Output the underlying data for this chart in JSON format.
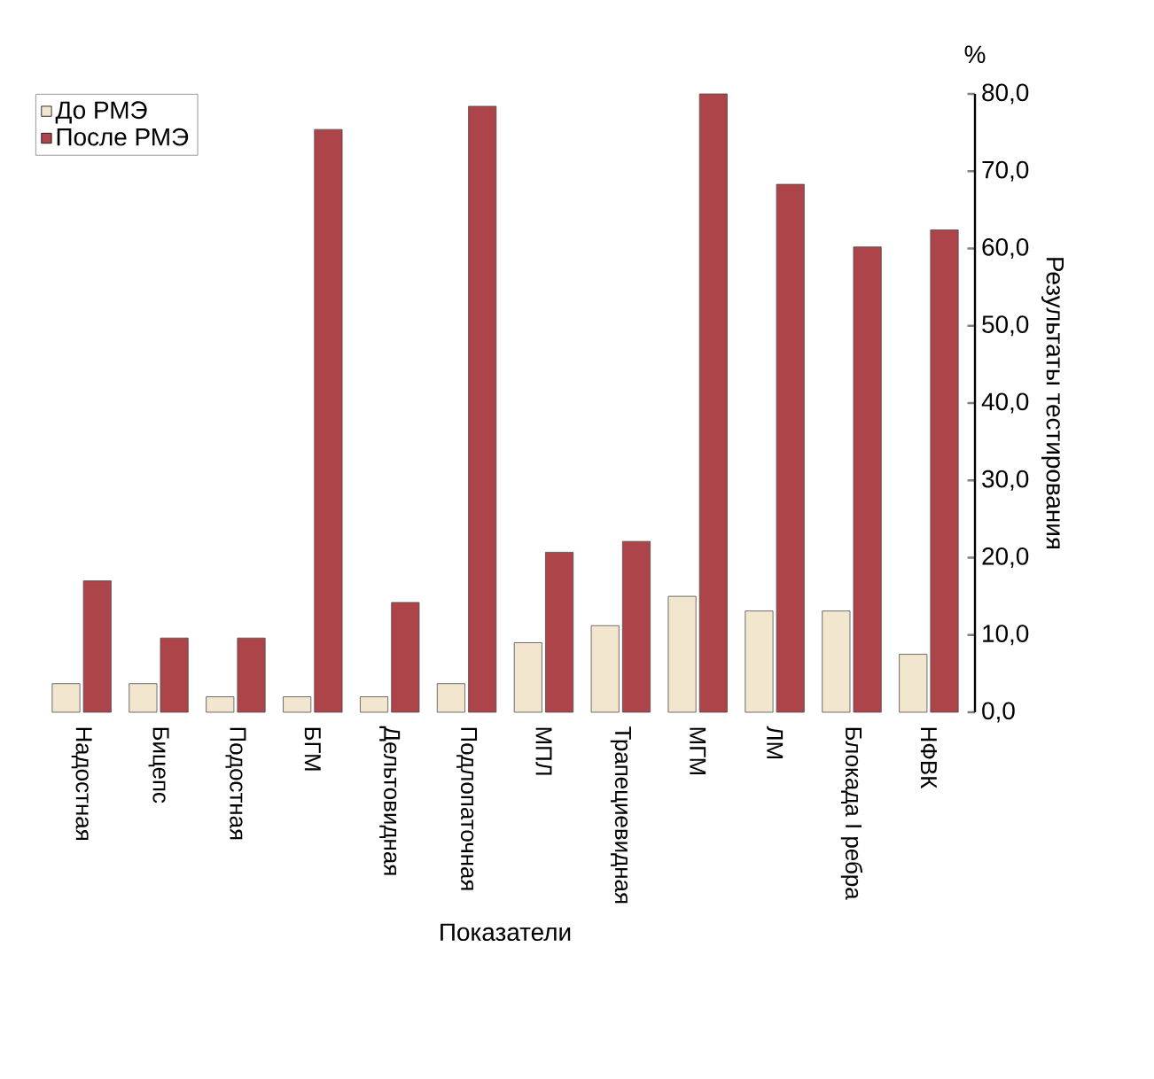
{
  "chart_data": {
    "type": "bar",
    "xlabel": "Показатели",
    "ylabel": "Результаты тестирования",
    "annotations": [
      "%"
    ],
    "categories": [
      "Надостная",
      "Бицепс",
      "Подостная",
      "БГМ",
      "Дельтовидная",
      "Подлопаточная",
      "МПЛ",
      "Трапециевидная",
      "МГМ",
      "ЛМ",
      "Блокада I ребра",
      "НФВК"
    ],
    "series": [
      {
        "name": "До РМЭ",
        "color": "#f3e6cf",
        "values": [
          3.7,
          3.7,
          2.0,
          2.0,
          2.0,
          3.7,
          9.0,
          11.2,
          15.0,
          13.1,
          13.1,
          7.5
        ]
      },
      {
        "name": "После РМЭ",
        "color": "#ac4449",
        "values": [
          17.0,
          9.6,
          9.6,
          75.4,
          14.2,
          78.4,
          20.7,
          22.1,
          80.0,
          68.3,
          60.2,
          62.4
        ]
      }
    ],
    "ylim": [
      0,
      80
    ],
    "yticks": [
      {
        "value": 0,
        "label": "0,0"
      },
      {
        "value": 10,
        "label": "10,0"
      },
      {
        "value": 20,
        "label": "20,0"
      },
      {
        "value": 30,
        "label": "30,0"
      },
      {
        "value": 40,
        "label": "40,0"
      },
      {
        "value": 50,
        "label": "50,0"
      },
      {
        "value": 60,
        "label": "60,0"
      },
      {
        "value": 70,
        "label": "70,0"
      },
      {
        "value": 80,
        "label": "80,0"
      }
    ],
    "legend": "top left",
    "grid": false
  }
}
